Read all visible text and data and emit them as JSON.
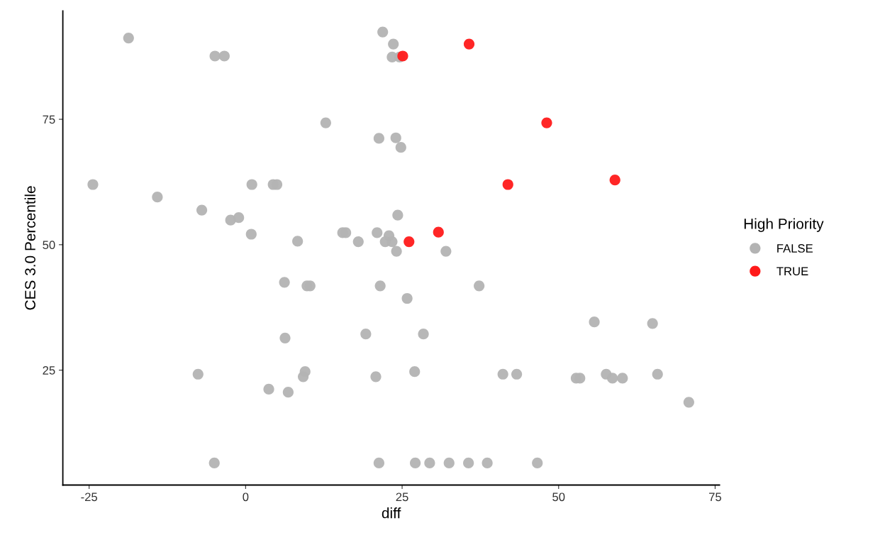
{
  "chart_data": {
    "type": "scatter",
    "xlabel": "diff",
    "ylabel": "CES 3.0 Percentile",
    "legend_title": "High Priority",
    "legend": "right",
    "grid": false,
    "marker": "circle",
    "xlim": [
      -29.2,
      75.7
    ],
    "ylim": [
      2.1,
      96.6
    ],
    "xticks": [
      -25,
      0,
      25,
      50,
      75
    ],
    "yticks": [
      25,
      50,
      75
    ],
    "series": [
      {
        "name": "FALSE",
        "color": "#b3b3b3",
        "x": [
          -18.7,
          -4.9,
          -3.4,
          21.9,
          23.6,
          23.4,
          24.6,
          12.8,
          21.3,
          24.0,
          24.8,
          -24.4,
          -14.1,
          -7.0,
          -2.4,
          -1.1,
          1.0,
          4.4,
          5.0,
          0.9,
          8.3,
          15.5,
          16.0,
          18.0,
          21.0,
          22.9,
          22.3,
          23.4,
          24.1,
          24.3,
          32.0,
          6.2,
          9.8,
          10.3,
          21.5,
          25.8,
          37.3,
          19.2,
          28.4,
          6.3,
          55.7,
          65.0,
          -7.6,
          9.5,
          9.2,
          3.7,
          6.8,
          20.8,
          27.0,
          41.1,
          43.3,
          52.8,
          53.4,
          57.6,
          58.6,
          60.2,
          65.8,
          70.8,
          -5.0,
          21.3,
          27.1,
          29.4,
          32.5,
          35.6,
          38.6,
          46.6
        ],
        "values": [
          91.2,
          87.6,
          87.6,
          92.4,
          90.0,
          87.4,
          87.4,
          74.3,
          71.2,
          71.3,
          69.4,
          62.0,
          59.5,
          56.9,
          54.9,
          55.4,
          62.0,
          62.0,
          62.0,
          52.1,
          50.7,
          52.4,
          52.4,
          50.6,
          52.4,
          51.8,
          50.6,
          50.6,
          48.7,
          55.9,
          48.7,
          42.5,
          41.8,
          41.8,
          41.8,
          39.3,
          41.8,
          32.2,
          32.2,
          31.4,
          34.6,
          34.3,
          24.2,
          24.7,
          23.7,
          21.2,
          20.6,
          23.7,
          24.7,
          24.2,
          24.2,
          23.4,
          23.4,
          24.2,
          23.4,
          23.4,
          24.2,
          18.6,
          6.5,
          6.5,
          6.5,
          6.5,
          6.5,
          6.5,
          6.5,
          6.5
        ]
      },
      {
        "name": "TRUE",
        "color": "#ff1a1a",
        "x": [
          35.7,
          25.1,
          48.1,
          41.9,
          59.0,
          30.8,
          26.1
        ],
        "values": [
          90.0,
          87.6,
          74.3,
          62.0,
          62.9,
          52.5,
          50.6
        ]
      }
    ]
  }
}
